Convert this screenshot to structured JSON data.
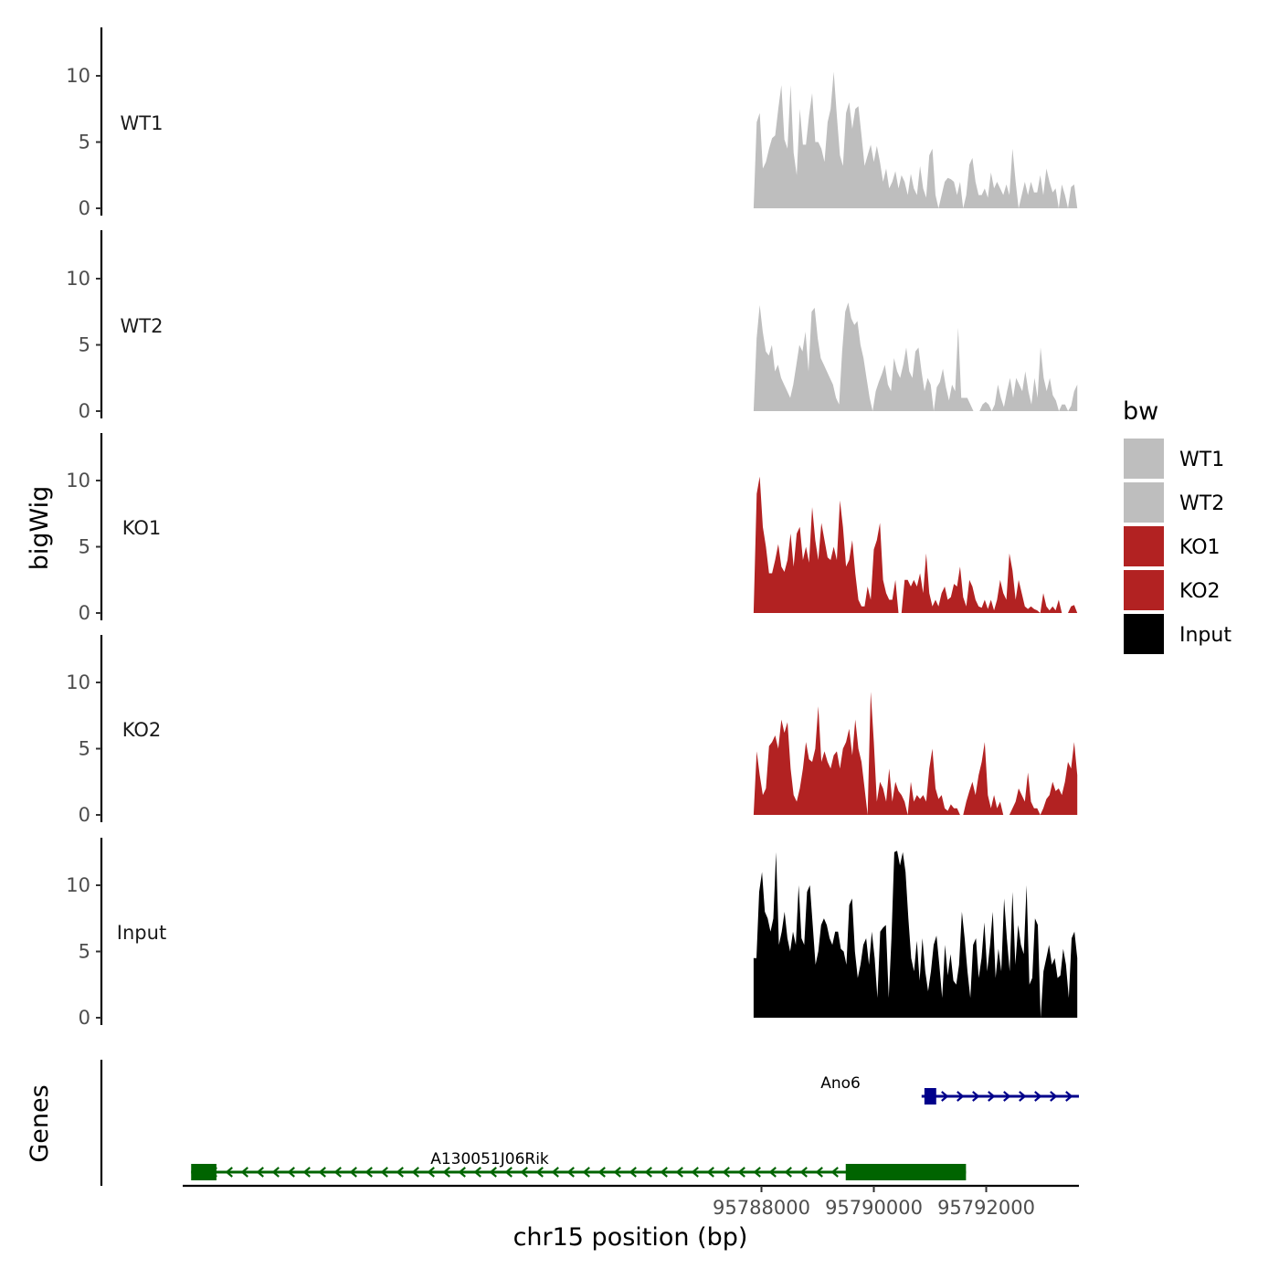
{
  "chart_data": {
    "type": "area",
    "ylabel": "bigWig",
    "xlabel": "chr15 position (bp)",
    "xlim": [
      95777700,
      95793650
    ],
    "ylim": [
      0,
      13.7
    ],
    "x_ticks": [
      95788000,
      95790000,
      95792000
    ],
    "x_tick_labels": [
      "95788000",
      "95790000",
      "95792000"
    ],
    "y_ticks": [
      0,
      5,
      10
    ],
    "y_tick_labels": [
      "0",
      "5",
      "10"
    ],
    "x_start": 95787860,
    "x_end": 95793620,
    "legend": {
      "title": "bw",
      "position": "right",
      "entries": [
        {
          "label": "WT1",
          "color": "#bebebe"
        },
        {
          "label": "WT2",
          "color": "#bebebe"
        },
        {
          "label": "KO1",
          "color": "#b22222"
        },
        {
          "label": "KO2",
          "color": "#b22222"
        },
        {
          "label": "Input",
          "color": "#000000"
        }
      ]
    },
    "series": [
      {
        "name": "WT1",
        "color": "#bebebe",
        "values": [
          0,
          6.5,
          7.2,
          3,
          3.5,
          4.5,
          5.3,
          5.5,
          7.5,
          9.3,
          5.2,
          4.5,
          9.3,
          4.2,
          2.5,
          7.5,
          4.8,
          4.8,
          7,
          8.7,
          5,
          5,
          4.5,
          3.5,
          6.5,
          7.5,
          10.3,
          7,
          4,
          3.2,
          7.2,
          8,
          6,
          7.5,
          7.7,
          5.5,
          3.2,
          4,
          4.8,
          3.5,
          4.7,
          3.5,
          2,
          3,
          1.5,
          2,
          2.8,
          1.5,
          2.5,
          2,
          1,
          2.6,
          1.5,
          1,
          3.2,
          1.5,
          0.8,
          4,
          4.5,
          1,
          0,
          1,
          2,
          2.3,
          2.2,
          2,
          1,
          2,
          0,
          1,
          3.3,
          3.8,
          2,
          1,
          1,
          1.5,
          0.8,
          2.7,
          1.5,
          2,
          1.5,
          1,
          1.8,
          1,
          4.5,
          2,
          0,
          1,
          2,
          1,
          2,
          1.2,
          1.2,
          2.5,
          1,
          3,
          2,
          1.2,
          1.5,
          0,
          1.8,
          1,
          0,
          1.6,
          1.8,
          0
        ]
      },
      {
        "name": "WT2",
        "color": "#bebebe",
        "values": [
          0,
          5.5,
          8,
          6,
          4.5,
          4.2,
          5,
          3,
          3.5,
          2.5,
          2,
          1.5,
          1,
          2,
          3.5,
          5,
          4.5,
          6,
          3,
          7.5,
          7.8,
          5.5,
          4,
          3.5,
          3,
          2.5,
          2,
          1,
          0.5,
          4.5,
          7.5,
          8.2,
          7,
          6.5,
          6.8,
          5,
          4,
          2.5,
          1,
          0,
          1.5,
          2.2,
          2.8,
          3.5,
          2,
          1.5,
          4,
          3,
          2.5,
          3.5,
          4.8,
          3,
          2.5,
          4.5,
          4.8,
          3,
          1.5,
          2.5,
          2,
          0,
          1.8,
          2.2,
          3.2,
          1.8,
          0.8,
          2,
          1.5,
          6.3,
          1,
          1,
          1,
          0.5,
          0,
          0,
          0,
          0.5,
          0.7,
          0.5,
          0,
          0.5,
          2,
          1,
          0.3,
          1.5,
          2.5,
          1,
          2.5,
          2,
          1.5,
          3,
          1.5,
          0.5,
          2.5,
          1,
          4.8,
          2.5,
          1.5,
          2.5,
          1.2,
          0.8,
          0,
          0.5,
          0.5,
          0,
          0.4,
          1.5,
          2
        ]
      },
      {
        "name": "KO1",
        "color": "#b22222",
        "values": [
          0,
          9,
          10.3,
          6.5,
          5,
          3,
          3,
          4,
          5.2,
          3.5,
          3.1,
          4,
          6,
          3.5,
          6,
          6.5,
          4,
          5,
          3.8,
          8,
          5.5,
          4,
          6.8,
          5.5,
          4.2,
          4,
          5,
          4,
          8.5,
          6.5,
          3.5,
          4,
          5.5,
          3,
          1,
          0.5,
          0.5,
          2,
          1,
          4.8,
          5.5,
          6.8,
          2.5,
          1.5,
          1,
          1,
          2.5,
          0,
          0,
          2.5,
          2.5,
          2,
          2.5,
          2,
          3,
          1.5,
          4.5,
          1.5,
          0.5,
          1,
          0.5,
          1.5,
          2,
          1,
          1.2,
          2.2,
          2,
          3.5,
          1.2,
          0.5,
          2.5,
          2,
          1,
          0.5,
          0.4,
          1,
          0.3,
          1,
          0.2,
          1,
          2.5,
          1.5,
          1,
          4.5,
          3.2,
          1,
          2.5,
          1.5,
          0.5,
          0.3,
          0.5,
          0.3,
          0.2,
          0,
          1.5,
          0.5,
          0.2,
          0.5,
          0.2,
          1,
          0,
          0,
          0,
          0.5,
          0.6,
          0
        ]
      },
      {
        "name": "KO2",
        "color": "#b22222",
        "values": [
          0,
          4.8,
          3,
          1.5,
          2,
          5.2,
          5.5,
          6,
          5,
          7.2,
          6.2,
          7,
          3.5,
          1.5,
          1,
          2,
          3.5,
          5.5,
          4.2,
          4,
          5,
          8.2,
          4,
          4.8,
          4,
          3.5,
          4.5,
          4.8,
          3.5,
          5,
          5.5,
          6.5,
          4.5,
          7.2,
          5,
          4,
          2,
          0,
          9.3,
          5.5,
          1,
          2.5,
          2,
          1,
          3.5,
          1,
          2.5,
          1.8,
          1.5,
          1,
          0,
          2.5,
          1,
          1.5,
          1.2,
          1.5,
          1,
          3.5,
          5,
          2,
          1.2,
          1.5,
          0.5,
          0.3,
          0.8,
          0.5,
          0.5,
          0,
          0,
          1,
          1.8,
          2.5,
          1.5,
          3,
          4,
          5.5,
          1.5,
          0.5,
          1.5,
          0.5,
          1,
          0,
          0,
          0,
          0.5,
          1,
          2,
          1.5,
          1,
          3.2,
          1,
          0.5,
          0.5,
          0,
          0.5,
          1.2,
          1.5,
          2.5,
          1.8,
          2,
          1.5,
          2.5,
          4,
          3.5,
          5.5,
          3
        ]
      },
      {
        "name": "Input",
        "color": "#000000",
        "values": [
          4.5,
          4.5,
          9.5,
          11,
          8,
          7.5,
          6.5,
          7.5,
          12.5,
          5.5,
          6.5,
          8,
          6,
          5,
          6.5,
          5.5,
          10,
          6,
          5.5,
          9.5,
          10,
          7,
          4,
          5,
          7,
          7.5,
          7,
          6,
          5.5,
          6.5,
          6.5,
          5.2,
          5,
          4,
          8.5,
          9,
          5,
          3,
          4,
          5.5,
          6,
          4,
          6.5,
          4.5,
          1.5,
          6.5,
          6.8,
          7,
          1.5,
          6,
          12.5,
          12.6,
          11.5,
          12.5,
          11,
          7.5,
          4.5,
          3.5,
          5.8,
          2.8,
          6,
          3.5,
          2,
          3.5,
          5.5,
          6.2,
          4,
          1.5,
          5.5,
          3.2,
          4.8,
          2.8,
          2.5,
          4,
          8,
          6,
          3.5,
          1.5,
          5.5,
          6,
          3,
          4.5,
          7.2,
          3.5,
          5.5,
          8,
          3,
          5.2,
          3.5,
          9,
          6,
          3.5,
          9.5,
          4,
          7,
          5.5,
          4.8,
          10,
          2.5,
          3,
          7.5,
          7,
          0,
          3.5,
          4.5,
          5.5,
          4,
          4.5,
          3,
          3.2,
          5.2,
          4,
          1.5,
          6,
          6.5,
          4.5
        ]
      }
    ],
    "genes": [
      {
        "name": "A130051J06Rik",
        "strand": "-",
        "start": 95777850,
        "end": 95791640,
        "exons": [
          [
            95777850,
            95778300
          ],
          [
            95789500,
            95791640
          ]
        ],
        "color": "#006400"
      },
      {
        "name": "Ano6",
        "strand": "+",
        "start": 95790850,
        "end": 95793650,
        "exons": [
          [
            95790900,
            95791110
          ]
        ],
        "color": "#00008b"
      }
    ],
    "genes_track_label": "Genes"
  }
}
